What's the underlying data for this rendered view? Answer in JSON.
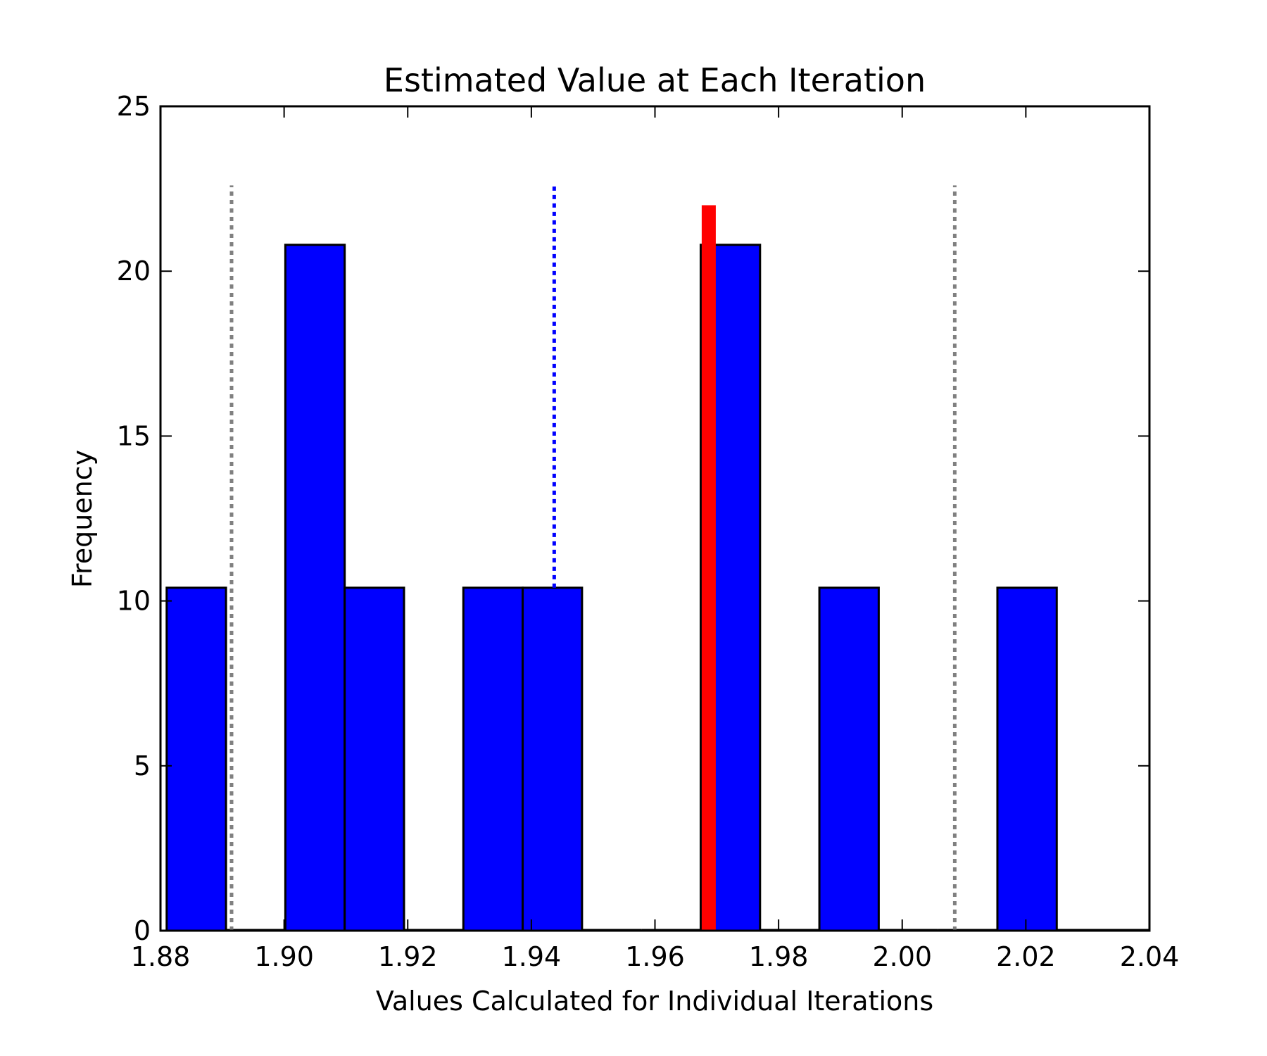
{
  "chart_data": {
    "type": "bar",
    "title": "Estimated Value at Each Iteration",
    "xlabel": "Values Calculated for Individual Iterations",
    "ylabel": "Frequency",
    "xlim": [
      1.88,
      2.04
    ],
    "ylim": [
      0,
      25
    ],
    "xticks": [
      "1.88",
      "1.90",
      "1.92",
      "1.94",
      "1.96",
      "1.98",
      "2.00",
      "2.02",
      "2.04"
    ],
    "yticks": [
      "0",
      "5",
      "10",
      "15",
      "20",
      "25"
    ],
    "grid": false,
    "bins": [
      {
        "x0": 1.881,
        "x1": 1.8906,
        "value": 10.4
      },
      {
        "x0": 1.8906,
        "x1": 1.9002,
        "value": 0
      },
      {
        "x0": 1.9002,
        "x1": 1.9098,
        "value": 20.8
      },
      {
        "x0": 1.9098,
        "x1": 1.9194,
        "value": 10.4
      },
      {
        "x0": 1.9194,
        "x1": 1.929,
        "value": 0
      },
      {
        "x0": 1.929,
        "x1": 1.9386,
        "value": 10.4
      },
      {
        "x0": 1.9386,
        "x1": 1.9482,
        "value": 10.4
      },
      {
        "x0": 1.9482,
        "x1": 1.9578,
        "value": 0
      },
      {
        "x0": 1.9578,
        "x1": 1.9674,
        "value": 0
      },
      {
        "x0": 1.9674,
        "x1": 1.977,
        "value": 20.8
      },
      {
        "x0": 1.977,
        "x1": 1.9866,
        "value": 0
      },
      {
        "x0": 1.9866,
        "x1": 1.9962,
        "value": 10.4
      },
      {
        "x0": 1.9962,
        "x1": 2.0058,
        "value": 0
      },
      {
        "x0": 2.0058,
        "x1": 2.0154,
        "value": 0
      },
      {
        "x0": 2.0154,
        "x1": 2.025,
        "value": 10.4
      },
      {
        "x0": 2.025,
        "x1": 2.04,
        "value": 0
      }
    ],
    "bar_color": "#0000ff",
    "reference_lines": [
      {
        "x": 1.8915,
        "y0": 0,
        "y1": 22.6,
        "style": "dotted",
        "color": "#808080"
      },
      {
        "x": 1.9437,
        "y0": 10.4,
        "y1": 22.6,
        "style": "dotted",
        "color": "#0000ff"
      },
      {
        "x": 2.0085,
        "y0": 0,
        "y1": 22.6,
        "style": "dotted",
        "color": "#808080"
      },
      {
        "x": 1.9687,
        "y0": 0,
        "y1": 22.0,
        "style": "solid",
        "color": "#ff0000"
      }
    ]
  }
}
